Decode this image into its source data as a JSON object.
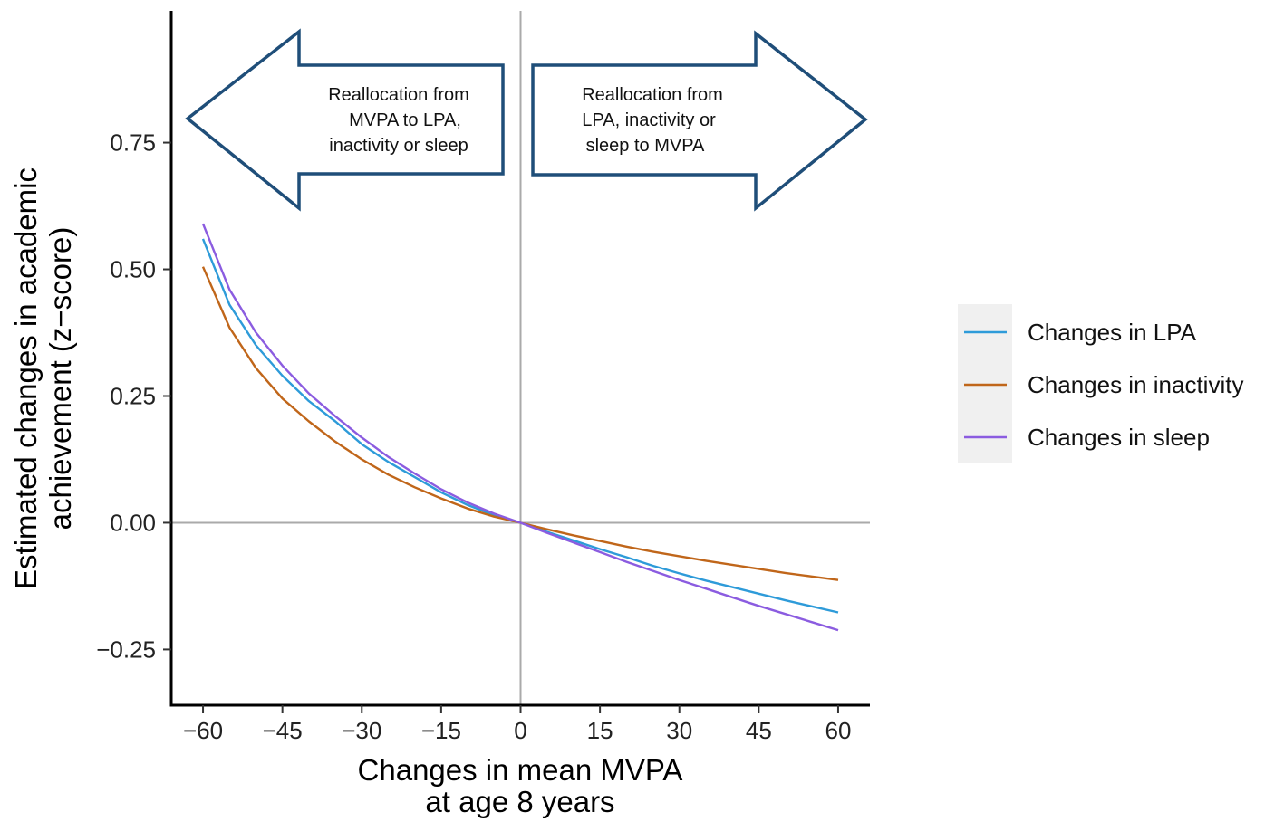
{
  "chart_data": {
    "type": "line",
    "x": [
      -60,
      -55,
      -50,
      -45,
      -40,
      -35,
      -30,
      -25,
      -20,
      -15,
      -10,
      -5,
      0,
      5,
      10,
      15,
      20,
      25,
      30,
      35,
      40,
      45,
      50,
      55,
      60
    ],
    "series": [
      {
        "name": "Changes in LPA",
        "color": "#2E9BD9",
        "values": [
          0.56,
          0.43,
          0.35,
          0.29,
          0.24,
          0.2,
          0.155,
          0.12,
          0.09,
          0.06,
          0.035,
          0.015,
          0.0,
          -0.018,
          -0.035,
          -0.052,
          -0.068,
          -0.085,
          -0.1,
          -0.114,
          -0.127,
          -0.14,
          -0.153,
          -0.165,
          -0.177
        ]
      },
      {
        "name": "Changes in inactivity",
        "color": "#C0661A",
        "values": [
          0.505,
          0.385,
          0.305,
          0.245,
          0.2,
          0.16,
          0.125,
          0.095,
          0.07,
          0.048,
          0.028,
          0.012,
          0.0,
          -0.013,
          -0.025,
          -0.036,
          -0.047,
          -0.057,
          -0.066,
          -0.075,
          -0.083,
          -0.091,
          -0.099,
          -0.106,
          -0.113
        ]
      },
      {
        "name": "Changes in sleep",
        "color": "#8B5CE0",
        "values": [
          0.59,
          0.46,
          0.375,
          0.31,
          0.255,
          0.21,
          0.168,
          0.13,
          0.097,
          0.066,
          0.04,
          0.018,
          0.0,
          -0.02,
          -0.039,
          -0.058,
          -0.077,
          -0.095,
          -0.113,
          -0.13,
          -0.147,
          -0.164,
          -0.18,
          -0.196,
          -0.212
        ]
      }
    ],
    "xlabel": [
      "Changes in mean MVPA",
      "at age 8 years"
    ],
    "ylabel": [
      "Estimated changes in academic",
      "achievement (z−score)"
    ],
    "xlim": [
      -66,
      66
    ],
    "ylim": [
      -0.36,
      1.01
    ],
    "xticks": [
      -60,
      -45,
      -30,
      -15,
      0,
      15,
      30,
      45,
      60
    ],
    "xtick_labels": [
      "−60",
      "−45",
      "−30",
      "−15",
      "0",
      "15",
      "30",
      "45",
      "60"
    ],
    "yticks": [
      -0.25,
      0,
      0.25,
      0.5,
      0.75
    ],
    "ytick_labels": [
      "−0.25",
      "0.00",
      "0.25",
      "0.50",
      "0.75"
    ],
    "reference_lines": {
      "x": 0,
      "y": 0,
      "color": "#AAAAAA"
    },
    "annotations": [
      {
        "direction": "left",
        "lines": [
          "Reallocation from",
          "MVPA to LPA,",
          "inactivity or sleep"
        ]
      },
      {
        "direction": "right",
        "lines": [
          "Reallocation from",
          "LPA, inactivity or",
          "sleep to MVPA"
        ]
      }
    ],
    "arrow_color": "#1F4E79",
    "legend": {
      "position": "right",
      "background": "#F0F0F0"
    }
  }
}
